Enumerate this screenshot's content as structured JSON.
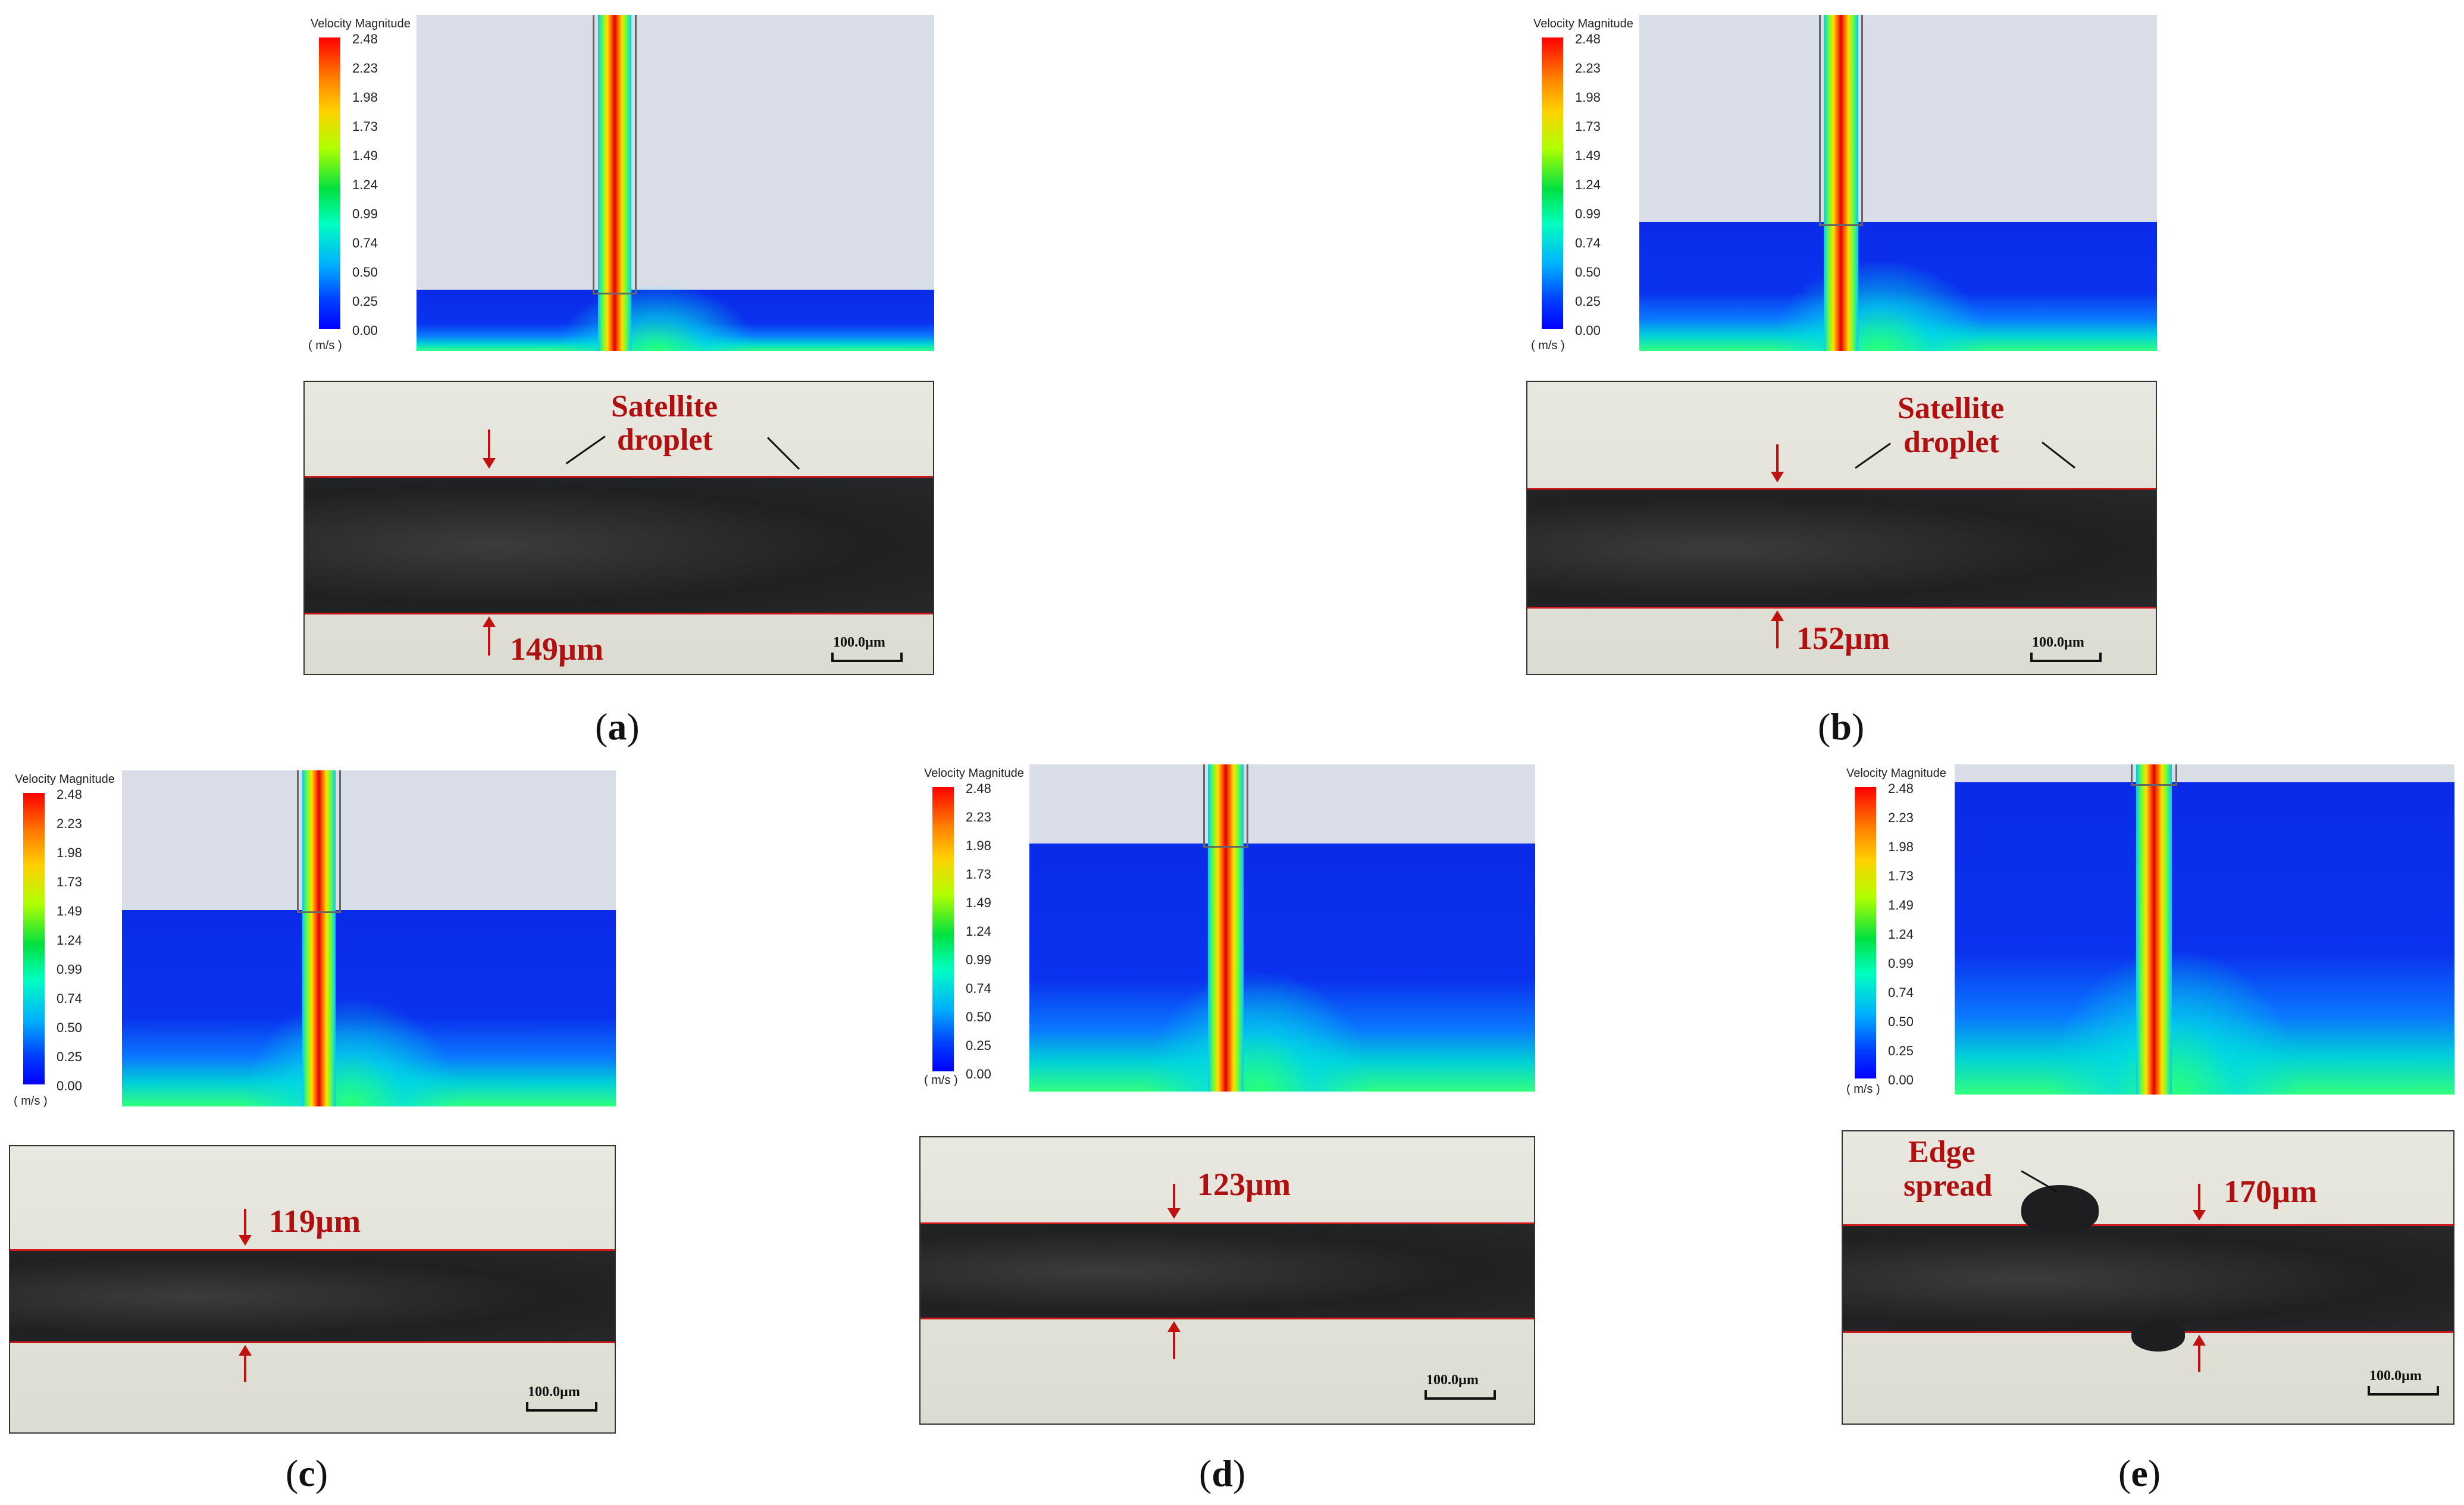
{
  "legend": {
    "title": "Velocity Magnitude",
    "ticks": [
      "2.48",
      "2.23",
      "1.98",
      "1.73",
      "1.49",
      "1.24",
      "0.99",
      "0.74",
      "0.50",
      "0.25",
      "0.00"
    ],
    "unit": "( m/s )"
  },
  "panels": {
    "a": {
      "caption_open": "(",
      "caption_letter": "a",
      "caption_close": ")",
      "width_label": "149µm",
      "ann1": "Satellite",
      "ann2": "droplet",
      "scale": "100.0µm"
    },
    "b": {
      "caption_open": "(",
      "caption_letter": "b",
      "caption_close": ")",
      "width_label": "152µm",
      "ann1": "Satellite",
      "ann2": "droplet",
      "scale": "100.0µm"
    },
    "c": {
      "caption_open": "(",
      "caption_letter": "c",
      "caption_close": ")",
      "width_label": "119µm",
      "scale": "100.0µm"
    },
    "d": {
      "caption_open": "(",
      "caption_letter": "d",
      "caption_close": ")",
      "width_label": "123µm",
      "scale": "100.0µm"
    },
    "e": {
      "caption_open": "(",
      "caption_letter": "e",
      "caption_close": ")",
      "width_label": "170µm",
      "ann1": "Edge",
      "ann2": "spread",
      "scale": "100.0µm"
    }
  },
  "colors": {
    "annotation": "#b01010",
    "edge_line": "#d01818"
  }
}
